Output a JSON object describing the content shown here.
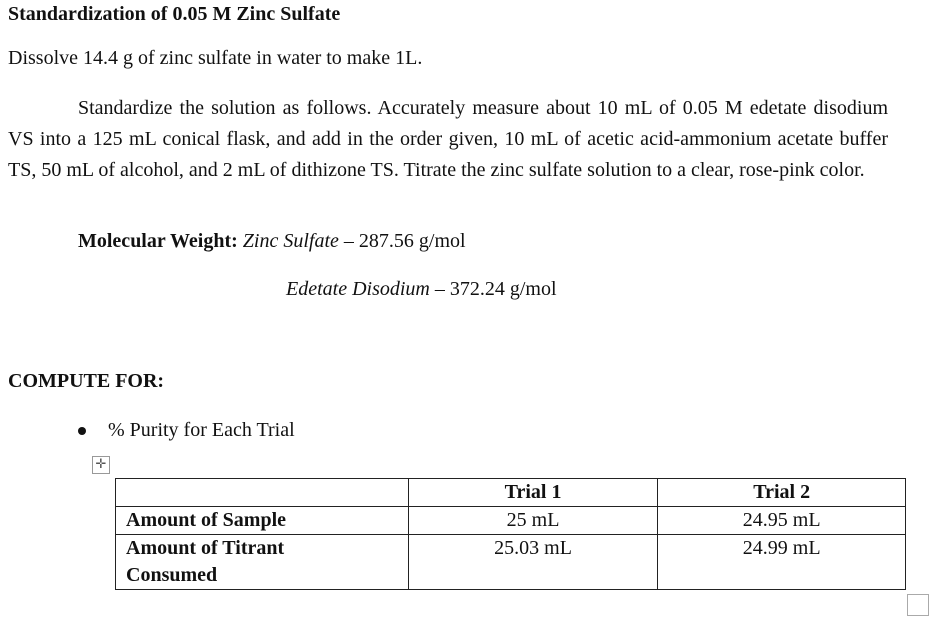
{
  "title": "Standardization of 0.05 M Zinc Sulfate",
  "intro": "Dissolve 14.4 g of zinc sulfate in water to make 1L.",
  "procedure": "Standardize the solution as follows. Accurately measure about 10 mL of 0.05 M edetate disodium VS into a 125 mL conical flask, and add in the order given, 10 mL of acetic acid-ammonium acetate buffer TS, 50 mL of alcohol, and 2 mL of dithizone TS. Titrate the zinc sulfate solution to a clear, rose-pink color.",
  "molecular_weight": {
    "label": "Molecular Weight:",
    "items": [
      {
        "name": "Zinc Sulfate",
        "value": " – 287.56 g/mol"
      },
      {
        "name": "Edetate Disodium",
        "value": " – 372.24 g/mol"
      }
    ]
  },
  "compute_heading": "COMPUTE FOR:",
  "compute_items": [
    "% Purity for Each Trial"
  ],
  "table": {
    "headers": [
      "",
      "Trial 1",
      "Trial 2"
    ],
    "rows": [
      {
        "label": "Amount of Sample",
        "values": [
          "25 mL",
          "24.95 mL"
        ]
      },
      {
        "label": "Amount of Titrant Consumed",
        "values": [
          "25.03 mL",
          "24.99 mL"
        ]
      }
    ]
  }
}
